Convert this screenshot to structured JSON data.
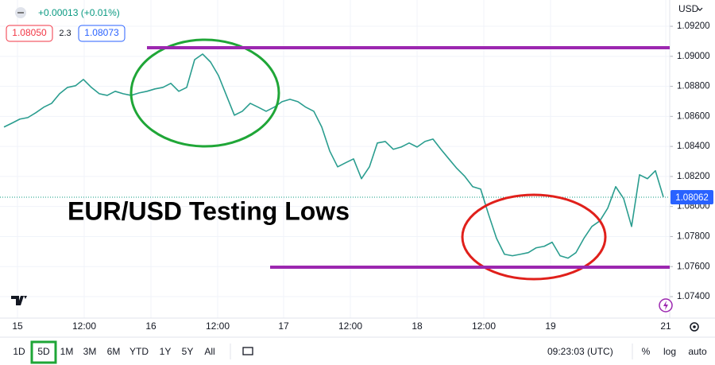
{
  "chart_data": {
    "type": "line",
    "title": "EUR/USD Testing Lows",
    "currency": "USD",
    "change": "+0.00013 (+0.01%)",
    "bid": "1.08050",
    "spread": "2.3",
    "ask": "1.08073",
    "last_price": {
      "value": 1.08062,
      "label": "1.08062"
    },
    "time_labels": [
      "15",
      "12:00",
      "16",
      "12:00",
      "17",
      "12:00",
      "18",
      "12:00",
      "19",
      "21"
    ],
    "ylim": [
      1.07257,
      1.09375
    ],
    "yticks": [
      {
        "value": 1.092,
        "label": "1.09200"
      },
      {
        "value": 1.09,
        "label": "1.09000"
      },
      {
        "value": 1.088,
        "label": "1.08800"
      },
      {
        "value": 1.086,
        "label": "1.08600"
      },
      {
        "value": 1.084,
        "label": "1.08400"
      },
      {
        "value": 1.082,
        "label": "1.08200"
      },
      {
        "value": 1.08,
        "label": "1.08000"
      },
      {
        "value": 1.078,
        "label": "1.07800"
      },
      {
        "value": 1.076,
        "label": "1.07600"
      },
      {
        "value": 1.074,
        "label": "1.07400"
      }
    ],
    "grid": true,
    "color": "#2a9d8f",
    "values": [
      1.08529,
      1.08555,
      1.08582,
      1.08592,
      1.08624,
      1.08661,
      1.08687,
      1.08751,
      1.08793,
      1.08804,
      1.08846,
      1.08793,
      1.08751,
      1.0874,
      1.08767,
      1.08751,
      1.0874,
      1.08756,
      1.08767,
      1.08783,
      1.08793,
      1.0882,
      1.08767,
      1.08793,
      1.08978,
      1.09015,
      1.08962,
      1.08872,
      1.0874,
      1.08608,
      1.08634,
      1.08687,
      1.08661,
      1.08634,
      1.08661,
      1.08698,
      1.08714,
      1.08698,
      1.08661,
      1.08634,
      1.08529,
      1.0837,
      1.08264,
      1.08291,
      1.08317,
      1.08185,
      1.08264,
      1.08423,
      1.08433,
      1.08381,
      1.08396,
      1.08423,
      1.08396,
      1.08433,
      1.08449,
      1.08381,
      1.08317,
      1.08254,
      1.08201,
      1.08132,
      1.08116,
      1.07947,
      1.07788,
      1.07682,
      1.07672,
      1.07682,
      1.07693,
      1.07725,
      1.07735,
      1.07762,
      1.07672,
      1.07656,
      1.07693,
      1.07788,
      1.07867,
      1.07904,
      1.07989,
      1.08132,
      1.08053,
      1.07867,
      1.08211,
      1.08185,
      1.08238,
      1.08063
    ],
    "hlines": [
      {
        "value": 1.09057,
        "color": "#9c27b0"
      },
      {
        "value": 1.07596,
        "color": "#9c27b0"
      }
    ],
    "ranges": [
      "1D",
      "5D",
      "1M",
      "3M",
      "6M",
      "YTD",
      "1Y",
      "5Y",
      "All"
    ],
    "selected_range": "5D",
    "clock": "09:23:03 (UTC)",
    "scale_options": [
      "%",
      "log",
      "auto"
    ]
  }
}
